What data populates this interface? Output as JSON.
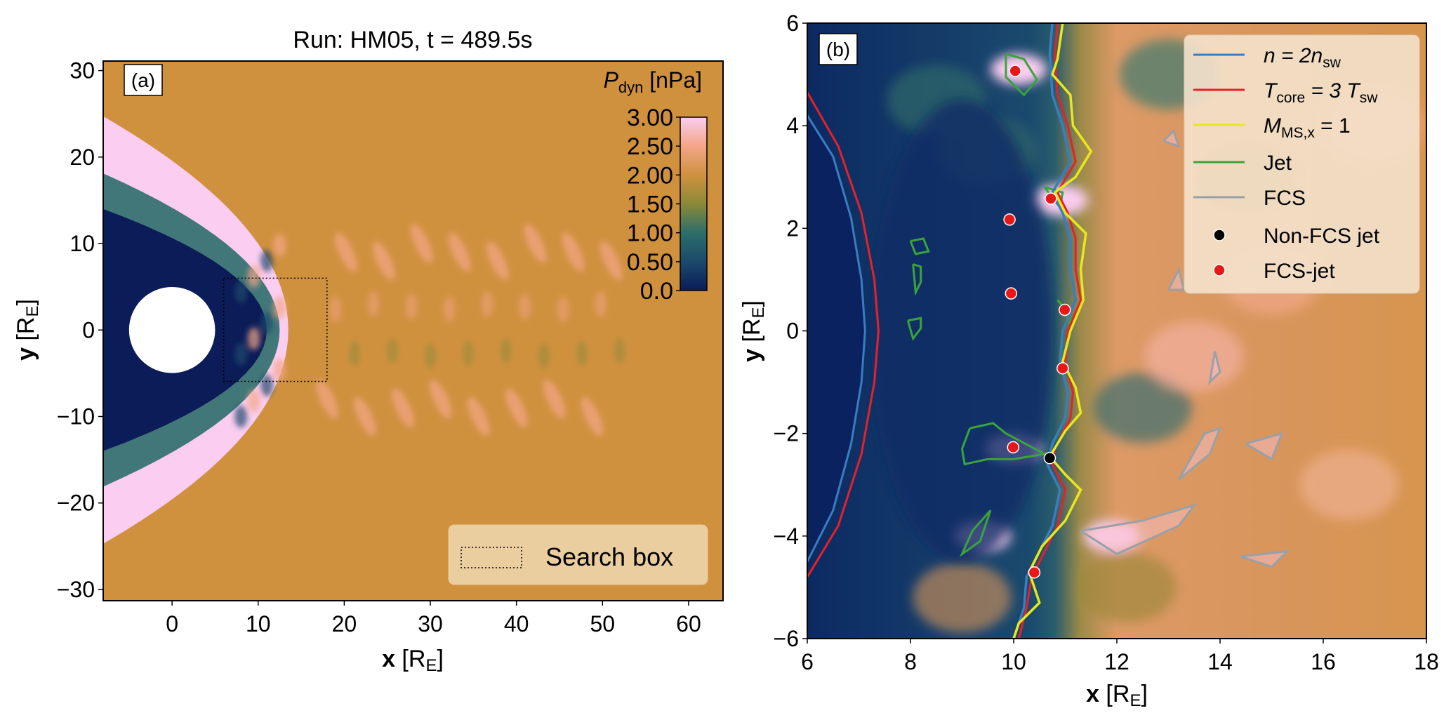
{
  "chart_data": [
    {
      "panel": "(a)",
      "type": "heatmap",
      "title": "Run: HM05, t = 489.5s",
      "xlabel": "x",
      "xunit": "R",
      "xunit_sub": "E",
      "ylabel": "y",
      "yunit": "R",
      "yunit_sub": "E",
      "xlim": [
        -8,
        64
      ],
      "ylim": [
        -31.3,
        31.1
      ],
      "xticks": [
        0,
        10,
        20,
        30,
        40,
        50,
        60
      ],
      "yticks": [
        -30,
        -20,
        -10,
        0,
        10,
        20,
        30
      ],
      "variable": "Pdyn",
      "colorbar": {
        "label": "P",
        "label_sub": "dyn",
        "unit": "[nPa]",
        "range": [
          0,
          3
        ],
        "tick_labels": [
          "0.0",
          "0.50",
          "1.00",
          "1.50",
          "2.00",
          "2.50",
          "3.00"
        ],
        "colors": [
          "#0b1c58",
          "#1b4a6c",
          "#2c6e6a",
          "#8b8a38",
          "#d0913f",
          "#f3a688",
          "#fbcdf0"
        ]
      },
      "earth": {
        "x": 0,
        "y": 0,
        "r": 5
      },
      "search_box": {
        "x": [
          6,
          18
        ],
        "y": [
          -6,
          6
        ]
      },
      "legend": {
        "label": "Search box",
        "placement": "lower-right"
      }
    },
    {
      "panel": "(b)",
      "type": "heatmap",
      "xlabel": "x",
      "xunit": "R",
      "xunit_sub": "E",
      "ylabel": "y",
      "yunit": "R",
      "yunit_sub": "E",
      "xlim": [
        6,
        18
      ],
      "ylim": [
        -6,
        6
      ],
      "xticks": [
        6,
        8,
        10,
        12,
        14,
        16,
        18
      ],
      "yticks": [
        -6,
        -4,
        -2,
        0,
        2,
        4,
        6
      ],
      "ytick_labels": [
        "−6",
        "−4",
        "−2",
        "0",
        "2",
        "4",
        "6"
      ],
      "legend": {
        "placement": "upper-right",
        "entries": [
          {
            "kind": "line",
            "color": "#3a7dc0",
            "label_main": "n = 2n",
            "label_sub": "sw",
            "label_tail": ""
          },
          {
            "kind": "line",
            "color": "#e8202a",
            "label_main": "T",
            "label_sub": "core",
            "label_tail": " = 3 T",
            "label_sub2": "sw"
          },
          {
            "kind": "line",
            "color": "#e8e81a",
            "label_main": "M",
            "label_sub": "MS,x",
            "label_tail": " = 1"
          },
          {
            "kind": "line",
            "color": "#3aa43a",
            "label_main": "Jet",
            "label_sub": "",
            "label_tail": ""
          },
          {
            "kind": "line",
            "color": "#9aa0a8",
            "label_main": "FCS",
            "label_sub": "",
            "label_tail": ""
          },
          {
            "kind": "marker",
            "color": "#000000",
            "label_main": "Non-FCS jet",
            "label_sub": "",
            "label_tail": ""
          },
          {
            "kind": "marker",
            "color": "#e81818",
            "label_main": "FCS-jet",
            "label_sub": "",
            "label_tail": ""
          }
        ]
      },
      "fcs_jets": [
        [
          10.03,
          5.07
        ],
        [
          10.72,
          2.58
        ],
        [
          9.92,
          2.17
        ],
        [
          9.95,
          0.73
        ],
        [
          10.99,
          0.41
        ],
        [
          10.95,
          -0.73
        ],
        [
          9.99,
          -2.27
        ],
        [
          10.4,
          -4.71
        ]
      ],
      "non_fcs_jets": [
        [
          10.7,
          -2.48
        ]
      ],
      "contours": {
        "n_2nsw_inner": [
          [
            6.0,
            4.2
          ],
          [
            6.5,
            3.4
          ],
          [
            6.85,
            2.2
          ],
          [
            7.05,
            1.0
          ],
          [
            7.12,
            0
          ],
          [
            7.05,
            -1.0
          ],
          [
            6.85,
            -2.2
          ],
          [
            6.5,
            -3.5
          ],
          [
            6.0,
            -4.5
          ]
        ],
        "tcore_inner": [
          [
            6.0,
            4.65
          ],
          [
            6.6,
            3.6
          ],
          [
            7.05,
            2.3
          ],
          [
            7.3,
            1.0
          ],
          [
            7.38,
            0
          ],
          [
            7.3,
            -1.0
          ],
          [
            7.05,
            -2.4
          ],
          [
            6.6,
            -3.8
          ],
          [
            6.0,
            -4.8
          ]
        ],
        "n_2nsw_shock": [
          [
            10.75,
            6
          ],
          [
            10.7,
            5.4
          ],
          [
            10.75,
            4.6
          ],
          [
            10.95,
            4.0
          ],
          [
            11.1,
            3.3
          ],
          [
            10.75,
            2.7
          ],
          [
            10.95,
            2.3
          ],
          [
            11.1,
            1.8
          ],
          [
            11.1,
            1.2
          ],
          [
            11.2,
            0.6
          ],
          [
            10.95,
            0
          ],
          [
            10.9,
            -0.6
          ],
          [
            11.05,
            -1.2
          ],
          [
            11.0,
            -1.7
          ],
          [
            10.75,
            -2.2
          ],
          [
            10.65,
            -2.6
          ],
          [
            10.9,
            -3.1
          ],
          [
            10.75,
            -3.8
          ],
          [
            10.5,
            -4.3
          ],
          [
            10.25,
            -4.8
          ],
          [
            10.2,
            -5.4
          ],
          [
            10.0,
            -6
          ]
        ],
        "tcore_shock": [
          [
            10.85,
            6
          ],
          [
            10.8,
            5.4
          ],
          [
            10.85,
            4.6
          ],
          [
            11.05,
            4.0
          ],
          [
            11.2,
            3.3
          ],
          [
            10.85,
            2.7
          ],
          [
            11.05,
            2.3
          ],
          [
            11.2,
            1.8
          ],
          [
            11.2,
            1.2
          ],
          [
            11.3,
            0.6
          ],
          [
            11.05,
            0
          ],
          [
            11.0,
            -0.6
          ],
          [
            11.15,
            -1.2
          ],
          [
            11.1,
            -1.7
          ],
          [
            10.8,
            -2.3
          ],
          [
            10.75,
            -2.6
          ],
          [
            11.0,
            -3.1
          ],
          [
            10.85,
            -3.8
          ],
          [
            10.6,
            -4.3
          ],
          [
            10.35,
            -4.8
          ],
          [
            10.25,
            -5.4
          ],
          [
            10.1,
            -6
          ]
        ],
        "mms_x_1": [
          [
            10.95,
            6
          ],
          [
            10.85,
            5.3
          ],
          [
            10.75,
            5.0
          ],
          [
            11.1,
            4.6
          ],
          [
            11.15,
            4.0
          ],
          [
            11.5,
            3.5
          ],
          [
            11.2,
            3.0
          ],
          [
            10.8,
            2.7
          ],
          [
            11.0,
            2.3
          ],
          [
            11.4,
            1.9
          ],
          [
            11.3,
            1.2
          ],
          [
            11.35,
            0.6
          ],
          [
            11.1,
            0
          ],
          [
            10.95,
            -0.6
          ],
          [
            11.2,
            -1.1
          ],
          [
            11.3,
            -1.6
          ],
          [
            11.0,
            -1.95
          ],
          [
            10.7,
            -2.45
          ],
          [
            11.0,
            -2.8
          ],
          [
            11.3,
            -3.1
          ],
          [
            11.0,
            -3.7
          ],
          [
            10.55,
            -4.2
          ],
          [
            10.3,
            -4.7
          ],
          [
            10.5,
            -5.3
          ],
          [
            10.1,
            -5.7
          ],
          [
            10.0,
            -6
          ]
        ],
        "jet": [
          [
            [
              9.85,
              5.4
            ],
            [
              10.2,
              5.3
            ],
            [
              10.45,
              4.9
            ],
            [
              10.2,
              4.6
            ],
            [
              9.85,
              4.95
            ],
            [
              9.85,
              5.4
            ]
          ],
          [
            [
              9.15,
              -1.9
            ],
            [
              9.6,
              -1.8
            ],
            [
              9.85,
              -2.0
            ],
            [
              10.6,
              -2.4
            ],
            [
              10.0,
              -2.5
            ],
            [
              9.5,
              -2.5
            ],
            [
              9.05,
              -2.6
            ],
            [
              9.0,
              -2.3
            ],
            [
              9.15,
              -1.9
            ]
          ],
          [
            [
              8.0,
              1.75
            ],
            [
              8.25,
              1.8
            ],
            [
              8.35,
              1.55
            ],
            [
              8.1,
              1.5
            ],
            [
              8.0,
              1.75
            ]
          ],
          [
            [
              8.05,
              1.3
            ],
            [
              8.2,
              1.25
            ],
            [
              8.2,
              0.95
            ],
            [
              8.1,
              0.75
            ],
            [
              8.05,
              1.3
            ]
          ],
          [
            [
              7.95,
              0.2
            ],
            [
              8.2,
              0.25
            ],
            [
              8.2,
              0.05
            ],
            [
              8.05,
              -0.15
            ],
            [
              7.95,
              0.2
            ]
          ],
          [
            [
              9.2,
              -3.9
            ],
            [
              9.55,
              -3.5
            ],
            [
              9.35,
              -4.1
            ],
            [
              9.0,
              -4.35
            ],
            [
              9.2,
              -3.9
            ]
          ],
          [
            [
              10.85,
              0.6
            ],
            [
              11.1,
              0.3
            ],
            [
              11.1,
              0.1
            ],
            [
              10.95,
              0.5
            ],
            [
              10.85,
              0.6
            ]
          ],
          [
            [
              10.6,
              2.8
            ],
            [
              10.95,
              2.7
            ],
            [
              10.9,
              2.4
            ],
            [
              10.6,
              2.8
            ]
          ]
        ],
        "fcs": [
          [
            [
              11.3,
              -3.9
            ],
            [
              12.5,
              -3.7
            ],
            [
              13.5,
              -3.4
            ],
            [
              13.2,
              -3.8
            ],
            [
              12.0,
              -4.35
            ],
            [
              11.3,
              -3.9
            ]
          ],
          [
            [
              13.2,
              -2.9
            ],
            [
              13.8,
              -2.4
            ],
            [
              14.0,
              -1.9
            ],
            [
              13.7,
              -2.0
            ],
            [
              13.2,
              -2.9
            ]
          ],
          [
            [
              14.5,
              -2.2
            ],
            [
              15.2,
              -2.0
            ],
            [
              15.0,
              -2.5
            ],
            [
              14.5,
              -2.2
            ]
          ],
          [
            [
              13.9,
              -0.4
            ],
            [
              14.0,
              -0.8
            ],
            [
              13.8,
              -1.0
            ],
            [
              13.9,
              -0.4
            ]
          ],
          [
            [
              14.4,
              -4.4
            ],
            [
              15.3,
              -4.3
            ],
            [
              15.0,
              -4.6
            ],
            [
              14.4,
              -4.4
            ]
          ],
          [
            [
              12.9,
              3.7
            ],
            [
              13.1,
              3.9
            ],
            [
              13.2,
              3.6
            ],
            [
              12.9,
              3.7
            ]
          ],
          [
            [
              13.0,
              0.8
            ],
            [
              13.2,
              1.2
            ],
            [
              13.3,
              0.8
            ],
            [
              13.0,
              0.8
            ]
          ]
        ]
      }
    }
  ]
}
